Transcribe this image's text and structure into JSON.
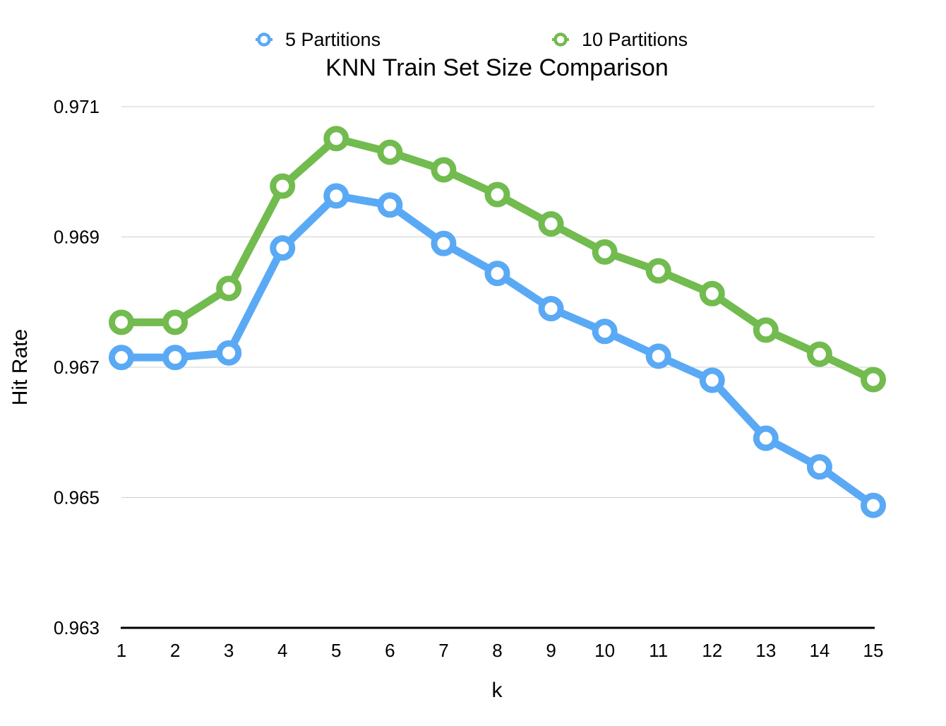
{
  "chart_data": {
    "type": "line",
    "title": "KNN Train Set Size Comparison",
    "xlabel": "k",
    "ylabel": "Hit Rate",
    "x": [
      1,
      2,
      3,
      4,
      5,
      6,
      7,
      8,
      9,
      10,
      11,
      12,
      13,
      14,
      15
    ],
    "x_tick_labels": [
      "1",
      "2",
      "3",
      "4",
      "5",
      "6",
      "7",
      "8",
      "9",
      "10",
      "11",
      "12",
      "13",
      "14",
      "15"
    ],
    "ylim": [
      0.963,
      0.971
    ],
    "y_ticks": [
      0.963,
      0.965,
      0.967,
      0.969,
      0.971
    ],
    "y_tick_labels": [
      "0.963",
      "0.965",
      "0.967",
      "0.969",
      "0.971"
    ],
    "grid": true,
    "legend_position": "top",
    "series": [
      {
        "name": "5 Partitions",
        "color": "#5aa9f5",
        "values": [
          0.96715,
          0.96715,
          0.96722,
          0.96883,
          0.96963,
          0.96949,
          0.9689,
          0.96844,
          0.9679,
          0.96755,
          0.96717,
          0.9668,
          0.96591,
          0.96547,
          0.96488
        ]
      },
      {
        "name": "10 Partitions",
        "color": "#72bb4f",
        "values": [
          0.96769,
          0.96769,
          0.96821,
          0.96978,
          0.97051,
          0.9703,
          0.97003,
          0.96965,
          0.9692,
          0.96877,
          0.96848,
          0.96813,
          0.96757,
          0.9672,
          0.96681
        ]
      }
    ]
  }
}
